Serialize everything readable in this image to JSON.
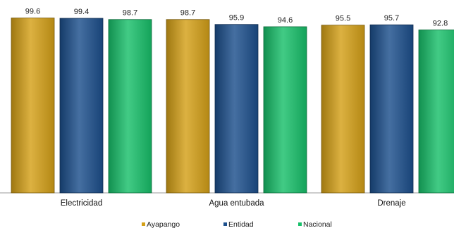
{
  "chart_data": {
    "type": "bar",
    "title": "",
    "xlabel": "",
    "ylabel": "",
    "categories": [
      "Electricidad",
      "Agua entubada",
      "Drenaje"
    ],
    "series": [
      {
        "name": "Ayapango",
        "values": [
          99.6,
          98.7,
          95.5
        ],
        "color": "#D4A017"
      },
      {
        "name": "Entidad",
        "values": [
          99.4,
          95.9,
          95.7
        ],
        "color": "#1C4F8C"
      },
      {
        "name": "Nacional",
        "values": [
          98.7,
          94.6,
          92.8
        ],
        "color": "#18C06A"
      }
    ],
    "ylim": [
      0,
      100
    ],
    "grid": false,
    "legend": "bottom",
    "data_labels": true
  }
}
